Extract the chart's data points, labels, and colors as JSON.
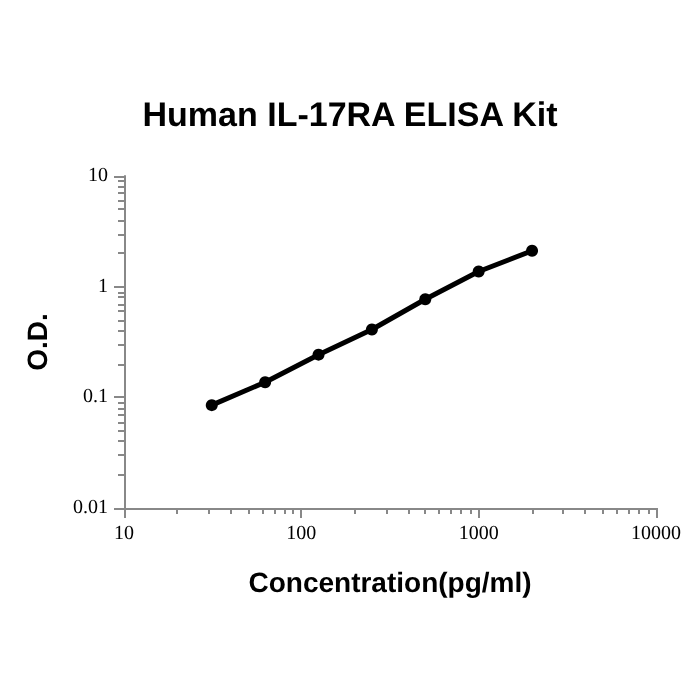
{
  "chart_data": {
    "type": "line",
    "title": "Human IL-17RA ELISA Kit",
    "xlabel": "Concentration(pg/ml)",
    "ylabel": "O.D.",
    "x": [
      31.25,
      62.5,
      125,
      250,
      500,
      1000,
      2000
    ],
    "series": [
      {
        "color": "#000000",
        "values": [
          0.085,
          0.137,
          0.243,
          0.41,
          0.77,
          1.37,
          2.11
        ]
      }
    ],
    "log": "xy",
    "xlim": [
      10,
      10000
    ],
    "xticks": [
      10,
      100,
      1000,
      10000
    ],
    "ylim": [
      0.01,
      10
    ],
    "yticks": [
      0.01,
      0.1,
      1,
      10
    ],
    "marker": "circle",
    "line_style": "solid"
  }
}
